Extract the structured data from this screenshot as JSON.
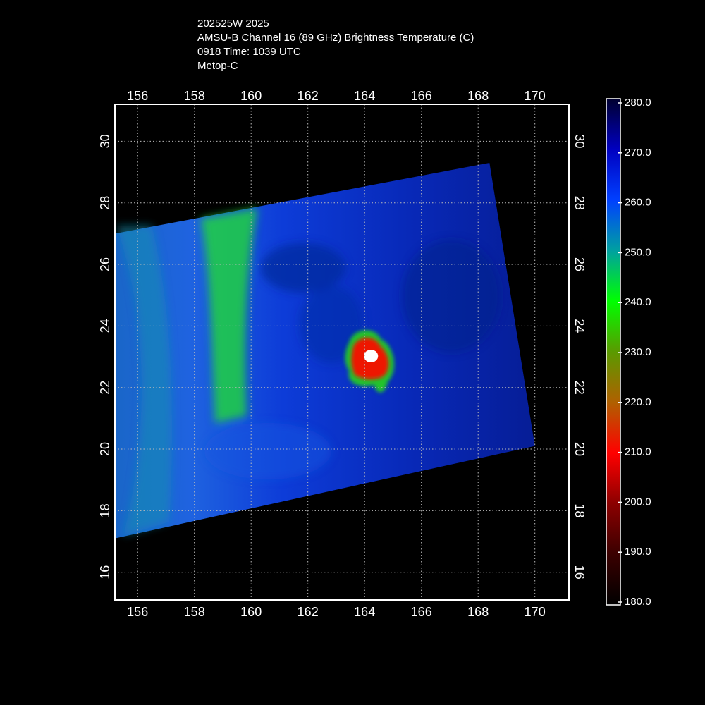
{
  "header": {
    "line1": "202525W 2025",
    "line2": "AMSU-B Channel 16 (89 GHz) Brightness Temperature (C)",
    "line3": "0918 Time: 1039 UTC",
    "line4": "Metop-C"
  },
  "map": {
    "lon_range": [
      155.2,
      171.2
    ],
    "lat_range": [
      15.1,
      31.2
    ],
    "lon_ticks": [
      "156",
      "158",
      "160",
      "162",
      "164",
      "166",
      "168",
      "170"
    ],
    "lat_ticks": [
      "16",
      "18",
      "20",
      "22",
      "24",
      "26",
      "28",
      "30"
    ],
    "grid": true,
    "swath_corners_lonlat": [
      [
        155.2,
        27.0
      ],
      [
        168.4,
        29.3
      ],
      [
        170.0,
        20.1
      ],
      [
        155.2,
        17.1
      ]
    ],
    "storm_center_lonlat": [
      164.2,
      23.0
    ]
  },
  "colorbar": {
    "min": 180.0,
    "max": 280.0,
    "tick_labels": [
      "280.0",
      "270.0",
      "260.0",
      "250.0",
      "240.0",
      "230.0",
      "220.0",
      "210.0",
      "200.0",
      "190.0",
      "180.0"
    ],
    "colors": [
      "#000000",
      "#3a0000",
      "#8b0000",
      "#ff0000",
      "#b06000",
      "#5a9a00",
      "#00ff00",
      "#00a0a0",
      "#0040ff",
      "#0000c0",
      "#000030"
    ]
  }
}
